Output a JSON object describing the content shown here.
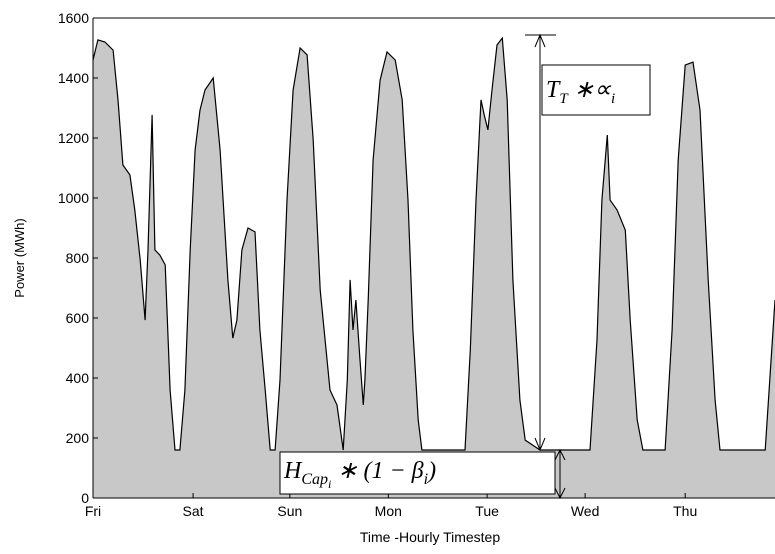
{
  "chart_data": {
    "type": "area",
    "x_label": "Time -Hourly Timestep",
    "y_label": "Power (MWh)",
    "color": "#c8c8c8",
    "x": [
      0,
      1.2,
      2.9,
      4.9,
      6.1,
      7.3,
      9.0,
      10.2,
      11.5,
      12.7,
      13.4,
      14.4,
      15.1,
      16.3,
      17.6,
      18.8,
      20.0,
      21.2,
      22.4,
      23.7,
      24.9,
      26.1,
      27.3,
      29.3,
      31.0,
      32.9,
      34.1,
      35.1,
      36.3,
      37.8,
      39.5,
      40.7,
      42.0,
      43.2,
      44.4,
      45.6,
      47.3,
      48.8,
      50.5,
      52.2,
      53.7,
      55.4,
      57.8,
      59.5,
      61.0,
      62.0,
      62.7,
      63.4,
      64.1,
      65.1,
      65.9,
      66.3,
      67.1,
      68.3,
      70.0,
      71.7,
      73.7,
      75.4,
      76.8,
      78.0,
      79.3,
      80.2,
      90.7,
      92.0,
      93.4,
      94.6,
      95.4,
      96.3,
      97.3,
      98.5,
      99.8,
      101.0,
      102.4,
      104.1,
      105.4,
      109.0,
      121.2,
      122.9,
      124.1,
      125.4,
      126.1,
      127.8,
      129.8,
      131.0,
      132.7,
      134.1,
      139.5,
      141.2,
      142.7,
      144.4,
      146.3,
      148.0,
      150.0,
      151.7,
      152.9,
      163.9,
      166.3
    ],
    "values": [
      1460,
      1527,
      1520,
      1493,
      1327,
      1110,
      1077,
      960,
      793,
      593,
      827,
      1277,
      827,
      810,
      777,
      360,
      160,
      160,
      360,
      827,
      1160,
      1293,
      1360,
      1400,
      1160,
      727,
      533,
      593,
      827,
      900,
      887,
      560,
      360,
      160,
      160,
      393,
      993,
      1360,
      1500,
      1477,
      1193,
      693,
      360,
      310,
      160,
      393,
      727,
      560,
      660,
      460,
      310,
      393,
      660,
      1127,
      1393,
      1487,
      1460,
      1327,
      993,
      560,
      260,
      160,
      160,
      493,
      993,
      1327,
      1277,
      1227,
      1360,
      1510,
      1533,
      1327,
      727,
      327,
      193,
      160,
      160,
      527,
      993,
      1210,
      993,
      960,
      893,
      593,
      260,
      160,
      160,
      560,
      1127,
      1443,
      1453,
      1293,
      727,
      327,
      160,
      160,
      660
    ],
    "xlim": [
      0,
      166.3
    ],
    "xticks": [
      {
        "value": 0,
        "label": "Fri"
      },
      {
        "value": 24.4,
        "label": "Sat"
      },
      {
        "value": 48.0,
        "label": "Sun"
      },
      {
        "value": 72.0,
        "label": "Mon"
      },
      {
        "value": 96.1,
        "label": "Tue"
      },
      {
        "value": 120.0,
        "label": "Wed"
      },
      {
        "value": 144.4,
        "label": "Thu"
      }
    ],
    "ylim": [
      0,
      1600
    ],
    "yticks": [
      0,
      200,
      400,
      600,
      800,
      1000,
      1200,
      1400,
      1600
    ],
    "annotations": [
      {
        "parts": [
          "T",
          "T",
          " ∗∝",
          "i"
        ]
      },
      {
        "parts": [
          "H",
          "Cap",
          "i",
          " ∗ (1 − β",
          "i",
          ")"
        ]
      }
    ]
  }
}
